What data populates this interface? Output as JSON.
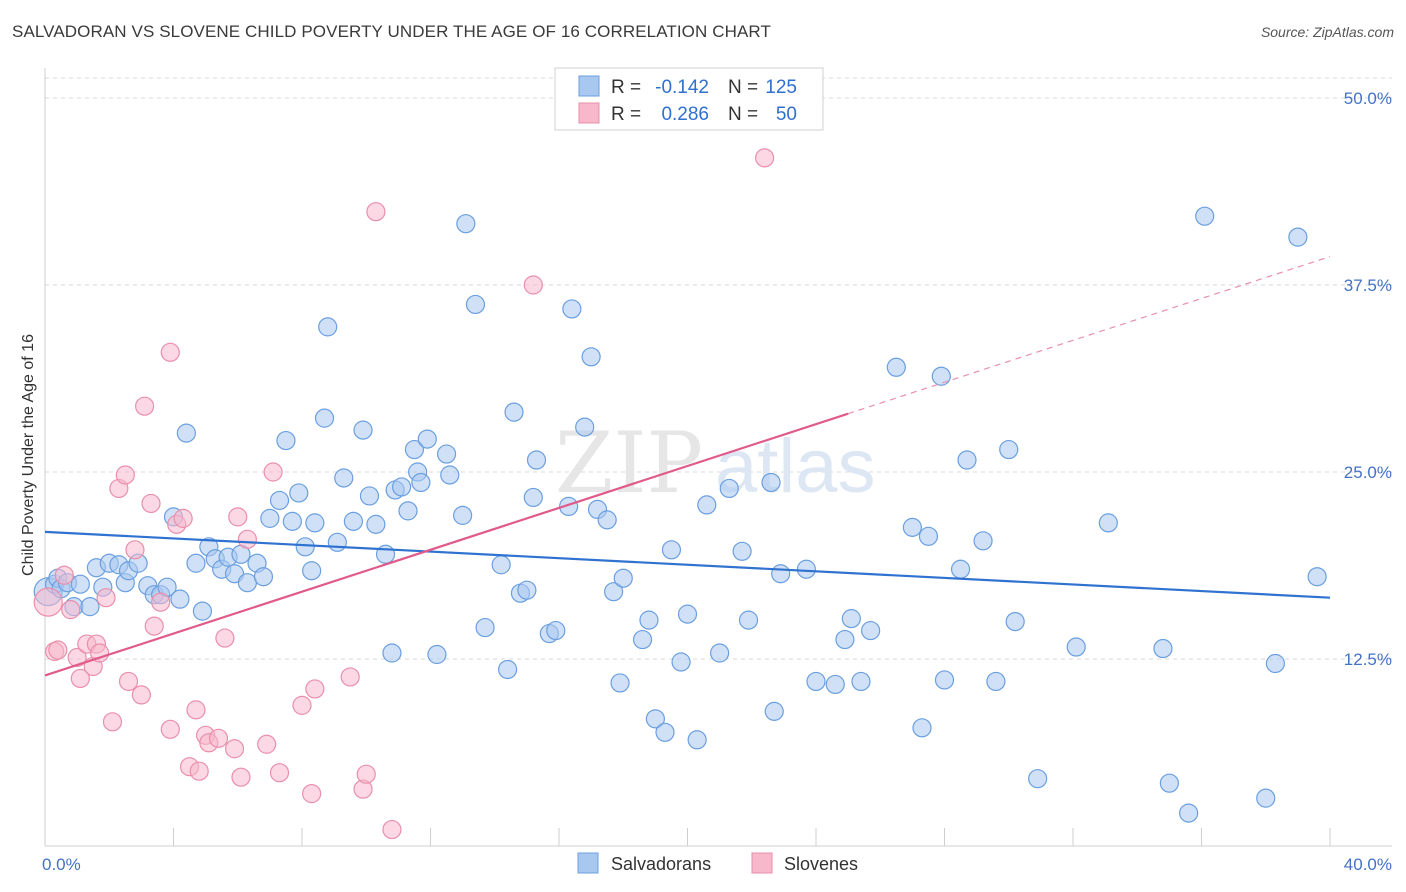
{
  "title": "SALVADORAN VS SLOVENE CHILD POVERTY UNDER THE AGE OF 16 CORRELATION CHART",
  "source": "Source: ZipAtlas.com",
  "watermark": {
    "zip": "ZIP",
    "atlas": "atlas"
  },
  "colors": {
    "blue_fill": "#a9c8f0",
    "blue_stroke": "#6a9fe0",
    "blue_line": "#2f72d0",
    "pink_fill": "#f7b8cc",
    "pink_stroke": "#ea8fab",
    "pink_line": "#e05a8a",
    "grid": "#d9d9d9",
    "axis_text": "#4472c4"
  },
  "legend": {
    "rows": [
      {
        "r_label": "R =",
        "r_value": "-0.142",
        "n_label": "N =",
        "n_value": "125"
      },
      {
        "r_label": "R =",
        "r_value": "0.286",
        "n_label": "N =",
        "n_value": "50"
      }
    ]
  },
  "bottom_legend": [
    "Salvadorans",
    "Slovenes"
  ],
  "chart_data": {
    "type": "scatter",
    "xlabel": "",
    "ylabel": "Child Poverty Under the Age of 16",
    "xlim": [
      0,
      40
    ],
    "ylim": [
      0,
      50
    ],
    "x_tick_labels": {
      "min": "0.0%",
      "max": "40.0%"
    },
    "y_ticks": [
      {
        "value": 12.5,
        "label": "12.5%"
      },
      {
        "value": 25.0,
        "label": "25.0%"
      },
      {
        "value": 37.5,
        "label": "37.5%"
      },
      {
        "value": 50.0,
        "label": "50.0%"
      }
    ],
    "grid": true,
    "series": [
      {
        "name": "Salvadorans",
        "R": -0.142,
        "N": 125,
        "trend": {
          "x1": 0,
          "y1": 21.0,
          "x2": 40,
          "y2": 16.6
        },
        "points": [
          [
            0.1,
            17.0
          ],
          [
            0.3,
            17.5
          ],
          [
            0.4,
            17.9
          ],
          [
            0.5,
            17.2
          ],
          [
            0.7,
            17.6
          ],
          [
            0.9,
            16.0
          ],
          [
            1.1,
            17.5
          ],
          [
            1.4,
            16.0
          ],
          [
            1.6,
            18.6
          ],
          [
            1.8,
            17.3
          ],
          [
            2.0,
            18.9
          ],
          [
            2.3,
            18.8
          ],
          [
            2.5,
            17.6
          ],
          [
            2.6,
            18.4
          ],
          [
            2.9,
            18.9
          ],
          [
            3.2,
            17.4
          ],
          [
            3.4,
            16.8
          ],
          [
            3.6,
            16.8
          ],
          [
            3.8,
            17.3
          ],
          [
            4.0,
            22.0
          ],
          [
            4.2,
            16.5
          ],
          [
            4.4,
            27.6
          ],
          [
            4.7,
            18.9
          ],
          [
            4.9,
            15.7
          ],
          [
            5.1,
            20.0
          ],
          [
            5.3,
            19.2
          ],
          [
            5.5,
            18.5
          ],
          [
            5.7,
            19.3
          ],
          [
            5.9,
            18.2
          ],
          [
            6.1,
            19.5
          ],
          [
            6.3,
            17.6
          ],
          [
            6.6,
            18.9
          ],
          [
            6.8,
            18.0
          ],
          [
            7.0,
            21.9
          ],
          [
            7.3,
            23.1
          ],
          [
            7.5,
            27.1
          ],
          [
            7.7,
            21.7
          ],
          [
            7.9,
            23.6
          ],
          [
            8.1,
            20.0
          ],
          [
            8.3,
            18.4
          ],
          [
            8.4,
            21.6
          ],
          [
            8.7,
            28.6
          ],
          [
            8.8,
            34.7
          ],
          [
            9.1,
            20.3
          ],
          [
            9.3,
            24.6
          ],
          [
            9.6,
            21.7
          ],
          [
            9.9,
            27.8
          ],
          [
            10.1,
            23.4
          ],
          [
            10.3,
            21.5
          ],
          [
            10.6,
            19.5
          ],
          [
            10.8,
            12.9
          ],
          [
            10.9,
            23.8
          ],
          [
            11.1,
            24.0
          ],
          [
            11.3,
            22.4
          ],
          [
            11.5,
            26.5
          ],
          [
            11.6,
            25.0
          ],
          [
            11.7,
            24.3
          ],
          [
            11.9,
            27.2
          ],
          [
            12.2,
            12.8
          ],
          [
            12.5,
            26.2
          ],
          [
            12.6,
            24.8
          ],
          [
            13.0,
            22.1
          ],
          [
            13.1,
            41.6
          ],
          [
            13.4,
            36.2
          ],
          [
            13.7,
            14.6
          ],
          [
            14.2,
            18.8
          ],
          [
            14.4,
            11.8
          ],
          [
            14.6,
            29.0
          ],
          [
            14.8,
            16.9
          ],
          [
            15.0,
            17.1
          ],
          [
            15.2,
            23.3
          ],
          [
            15.3,
            25.8
          ],
          [
            15.7,
            14.2
          ],
          [
            15.9,
            14.4
          ],
          [
            16.3,
            22.7
          ],
          [
            16.4,
            35.9
          ],
          [
            16.8,
            28.0
          ],
          [
            17.0,
            32.7
          ],
          [
            17.2,
            22.5
          ],
          [
            17.5,
            21.8
          ],
          [
            17.7,
            17.0
          ],
          [
            17.9,
            10.9
          ],
          [
            18.0,
            17.9
          ],
          [
            18.6,
            13.8
          ],
          [
            18.8,
            15.1
          ],
          [
            19.0,
            8.5
          ],
          [
            19.3,
            7.6
          ],
          [
            19.5,
            19.8
          ],
          [
            19.8,
            12.3
          ],
          [
            20.0,
            15.5
          ],
          [
            20.3,
            7.1
          ],
          [
            20.6,
            22.8
          ],
          [
            21.0,
            12.9
          ],
          [
            21.3,
            23.9
          ],
          [
            21.7,
            19.7
          ],
          [
            21.9,
            15.1
          ],
          [
            22.6,
            24.3
          ],
          [
            22.7,
            9.0
          ],
          [
            22.9,
            18.2
          ],
          [
            23.7,
            18.5
          ],
          [
            24.0,
            11.0
          ],
          [
            24.6,
            10.8
          ],
          [
            24.9,
            13.8
          ],
          [
            25.1,
            15.2
          ],
          [
            25.4,
            11.0
          ],
          [
            25.7,
            14.4
          ],
          [
            26.5,
            32.0
          ],
          [
            27.0,
            21.3
          ],
          [
            27.3,
            7.9
          ],
          [
            27.5,
            20.7
          ],
          [
            27.9,
            31.4
          ],
          [
            28.0,
            11.1
          ],
          [
            28.5,
            18.5
          ],
          [
            28.7,
            25.8
          ],
          [
            29.2,
            20.4
          ],
          [
            29.6,
            11.0
          ],
          [
            30.0,
            26.5
          ],
          [
            30.2,
            15.0
          ],
          [
            30.9,
            4.5
          ],
          [
            32.1,
            13.3
          ],
          [
            33.1,
            21.6
          ],
          [
            35.0,
            4.2
          ],
          [
            35.6,
            2.2
          ],
          [
            36.1,
            42.1
          ],
          [
            38.3,
            12.2
          ],
          [
            38.0,
            3.2
          ],
          [
            39.0,
            40.7
          ],
          [
            39.6,
            18.0
          ],
          [
            34.8,
            13.2
          ]
        ]
      },
      {
        "name": "Slovenes",
        "R": 0.286,
        "N": 50,
        "trend": {
          "x1": 0,
          "y1": 11.4,
          "x2": 25,
          "y2": 28.9,
          "x_dash_end": 40,
          "y_dash_end": 39.4
        },
        "points": [
          [
            0.1,
            16.3
          ],
          [
            0.3,
            13.0
          ],
          [
            0.4,
            13.1
          ],
          [
            0.6,
            18.1
          ],
          [
            0.8,
            15.8
          ],
          [
            1.0,
            12.6
          ],
          [
            1.1,
            11.2
          ],
          [
            1.3,
            13.5
          ],
          [
            1.5,
            12.0
          ],
          [
            1.6,
            13.5
          ],
          [
            1.7,
            12.9
          ],
          [
            1.9,
            16.6
          ],
          [
            2.1,
            8.3
          ],
          [
            2.3,
            23.9
          ],
          [
            2.5,
            24.8
          ],
          [
            2.6,
            11.0
          ],
          [
            2.8,
            19.8
          ],
          [
            3.0,
            10.1
          ],
          [
            3.1,
            29.4
          ],
          [
            3.3,
            22.9
          ],
          [
            3.4,
            14.7
          ],
          [
            3.6,
            16.3
          ],
          [
            3.9,
            33.0
          ],
          [
            3.9,
            7.8
          ],
          [
            4.1,
            21.5
          ],
          [
            4.3,
            21.9
          ],
          [
            4.5,
            5.3
          ],
          [
            4.7,
            9.1
          ],
          [
            4.8,
            5.0
          ],
          [
            5.0,
            7.4
          ],
          [
            5.1,
            6.9
          ],
          [
            5.4,
            7.2
          ],
          [
            5.6,
            13.9
          ],
          [
            5.9,
            6.5
          ],
          [
            6.0,
            22.0
          ],
          [
            6.1,
            4.6
          ],
          [
            6.3,
            20.5
          ],
          [
            6.9,
            6.8
          ],
          [
            7.1,
            25.0
          ],
          [
            7.3,
            4.9
          ],
          [
            8.0,
            9.4
          ],
          [
            8.3,
            3.5
          ],
          [
            8.4,
            10.5
          ],
          [
            9.5,
            11.3
          ],
          [
            9.9,
            3.8
          ],
          [
            10.0,
            4.8
          ],
          [
            10.3,
            42.4
          ],
          [
            10.8,
            1.1
          ],
          [
            15.2,
            37.5
          ],
          [
            22.4,
            46.0
          ]
        ]
      }
    ]
  }
}
